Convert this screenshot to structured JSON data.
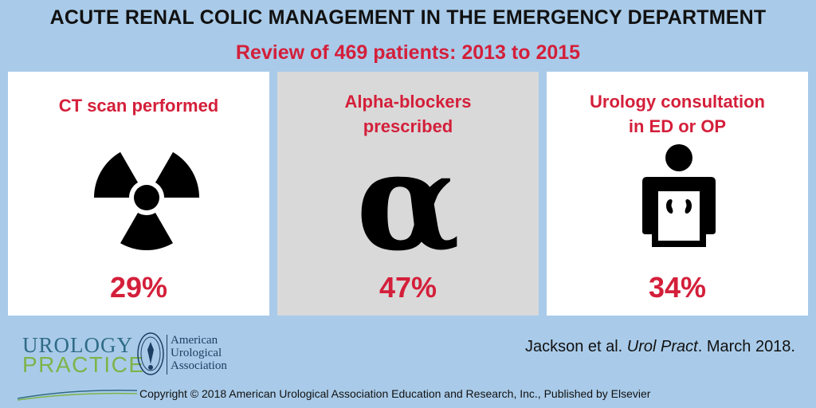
{
  "header": {
    "title": "ACUTE RENAL COLIC MANAGEMENT IN THE EMERGENCY DEPARTMENT",
    "subtitle": "Review of 469 patients: 2013 to 2015"
  },
  "cards": [
    {
      "label_line1": "CT scan performed",
      "label_line2": "",
      "percent": "29%",
      "icon": "radiation-icon"
    },
    {
      "label_line1": "Alpha-blockers",
      "label_line2": "prescribed",
      "percent": "47%",
      "icon": "alpha-icon",
      "glyph": "α"
    },
    {
      "label_line1": "Urology consultation",
      "label_line2": "in ED or OP",
      "percent": "34%",
      "icon": "person-kidneys-icon"
    }
  ],
  "footer": {
    "logo_line1": "UROLOGY",
    "logo_line2": "PRACTICE",
    "aua_line1": "American",
    "aua_line2": "Urological",
    "aua_line3": "Association",
    "citation_authors": "Jackson et al. ",
    "citation_journal": "Urol Pract",
    "citation_date": ". March 2018.",
    "copyright": "Copyright © 2018 American Urological Association Education and Research, Inc., Published by Elsevier"
  },
  "colors": {
    "background": "#a9cbe9",
    "accent_red": "#d41f3a",
    "card_white": "#ffffff",
    "card_grey": "#d9d9d9",
    "logo_blue": "#2f6b86",
    "logo_green": "#7fb34a"
  }
}
